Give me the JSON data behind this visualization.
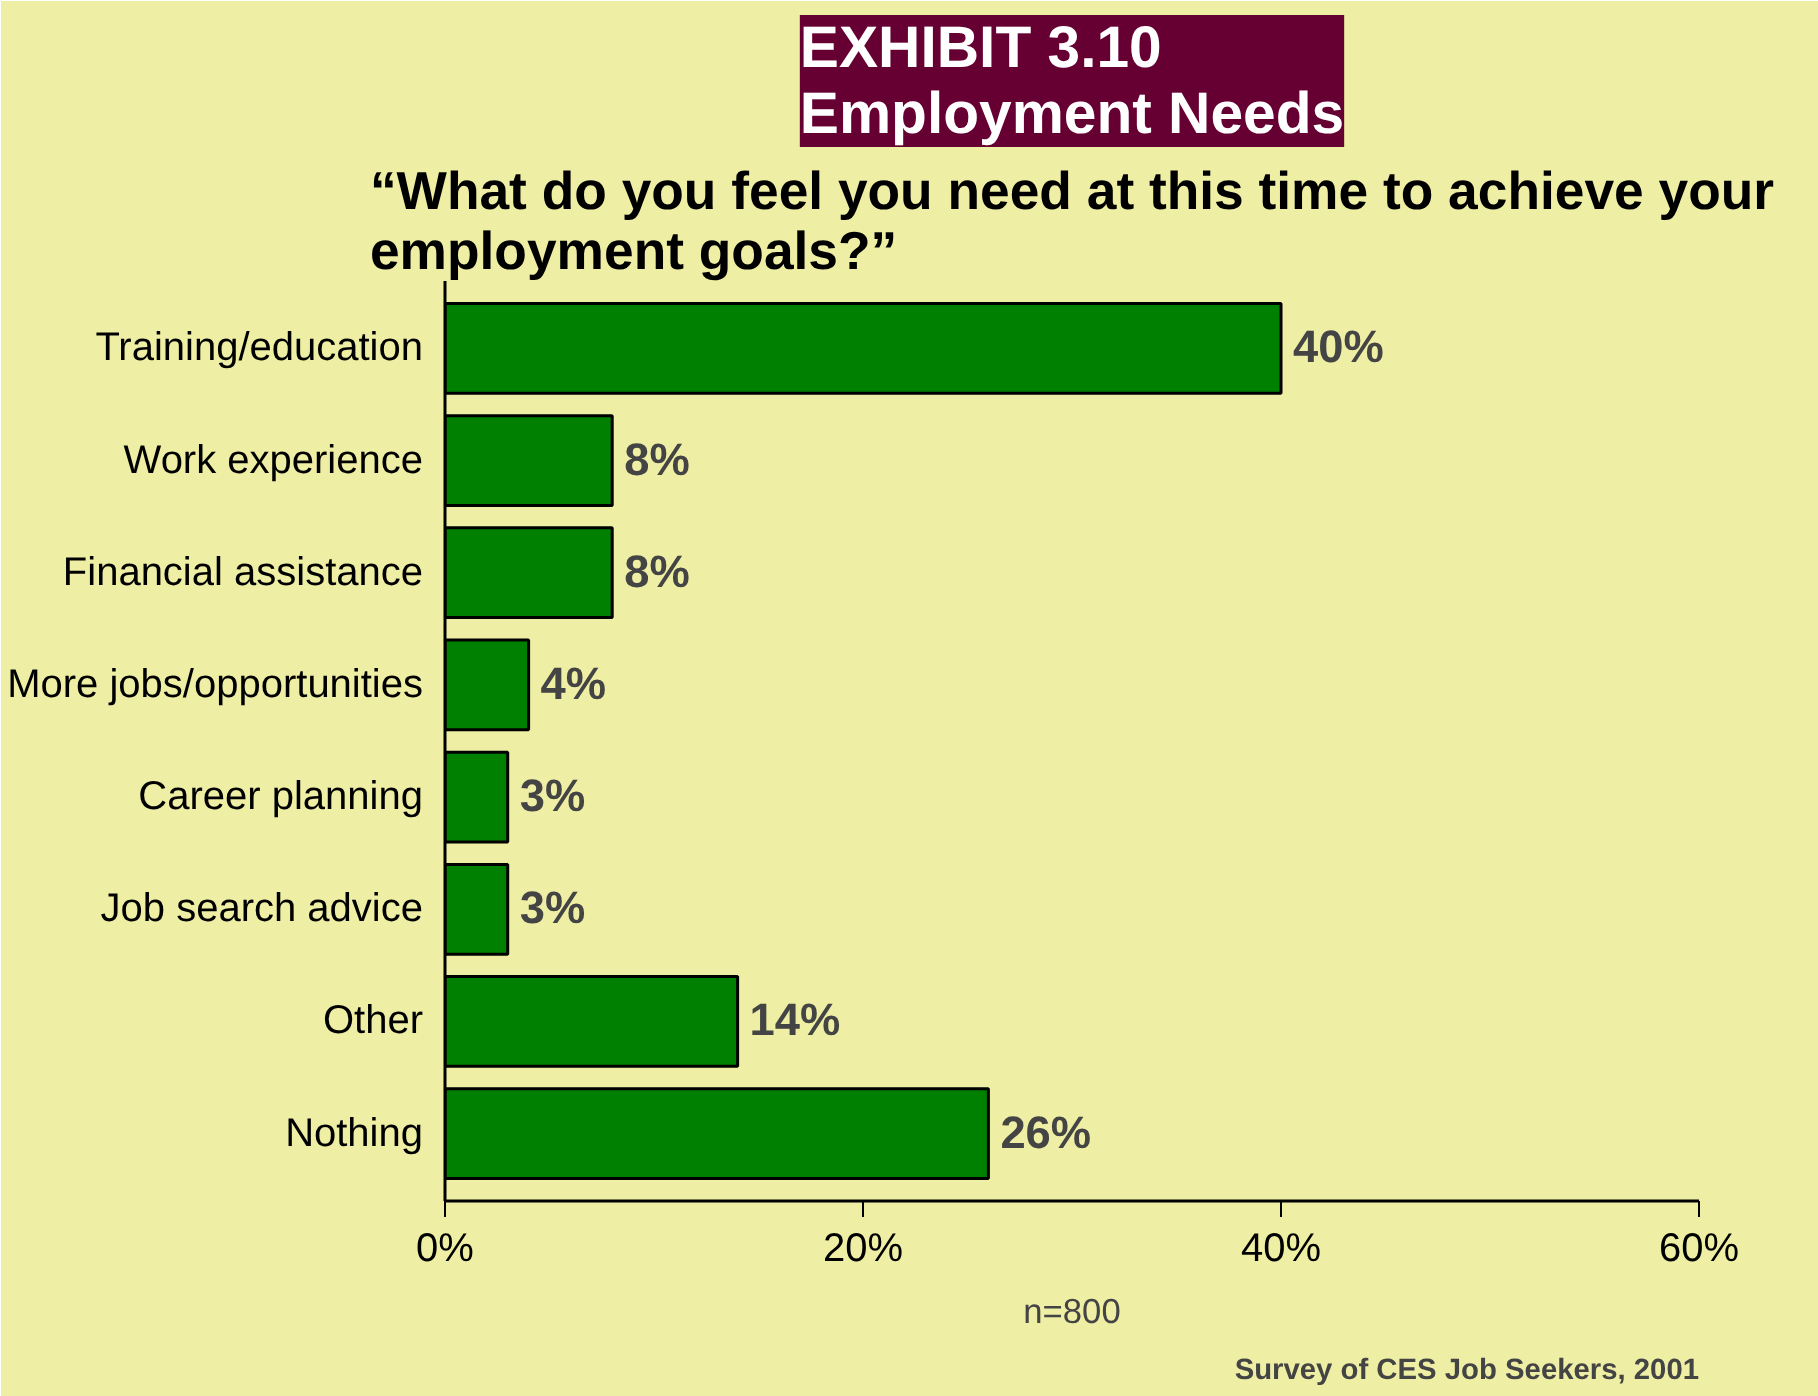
{
  "chart_data": {
    "type": "bar",
    "orientation": "horizontal",
    "title": "EXHIBIT 3.10\nEmployment Needs",
    "subtitle": "“What do you feel you need at this time to achieve your\nemployment goals?”",
    "categories": [
      "Training/education",
      "Work experience",
      "Financial assistance",
      "More jobs/opportunities",
      "Career planning",
      "Job search advice",
      "Other",
      "Nothing"
    ],
    "values": [
      40,
      8,
      8,
      4,
      3,
      3,
      14,
      26
    ],
    "value_labels": [
      "40%",
      "8%",
      "8%",
      "4%",
      "3%",
      "3%",
      "14%",
      "26%"
    ],
    "color": "#008000",
    "xlim": [
      0,
      60
    ],
    "xticks": [
      {
        "value": 0,
        "label": "0%"
      },
      {
        "value": 20,
        "label": "20%"
      },
      {
        "value": 40,
        "label": "40%"
      },
      {
        "value": 60,
        "label": "60%"
      }
    ],
    "grid": false,
    "annotations": [
      "n=800",
      "Survey of CES Job Seekers, 2001"
    ]
  }
}
